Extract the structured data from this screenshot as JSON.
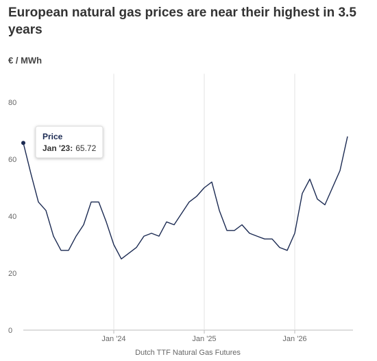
{
  "chart_data": {
    "type": "line",
    "title": "European natural gas prices are near their highest in 3.5 years",
    "y_label": "€ / MWh",
    "source": "Dutch TTF Natural Gas Futures",
    "x": [
      "2023-01",
      "2023-02",
      "2023-03",
      "2023-04",
      "2023-05",
      "2023-06",
      "2023-07",
      "2023-08",
      "2023-09",
      "2023-10",
      "2023-11",
      "2023-12",
      "2024-01",
      "2024-02",
      "2024-03",
      "2024-04",
      "2024-05",
      "2024-06",
      "2024-07",
      "2024-08",
      "2024-09",
      "2024-10",
      "2024-11",
      "2024-12",
      "2025-01",
      "2025-02",
      "2025-03",
      "2025-04",
      "2025-05",
      "2025-06",
      "2025-07",
      "2025-08",
      "2025-09",
      "2025-10",
      "2025-11",
      "2025-12",
      "2026-01",
      "2026-02",
      "2026-03",
      "2026-04",
      "2026-05",
      "2026-06",
      "2026-07",
      "2026-08"
    ],
    "series": [
      {
        "name": "Price",
        "color": "#1b2a52",
        "values": [
          65.72,
          55,
          45,
          42,
          33,
          28,
          28,
          33,
          37,
          45,
          45,
          38,
          30,
          25,
          27,
          29,
          33,
          34,
          33,
          38,
          37,
          41,
          45,
          47,
          50,
          52,
          42,
          35,
          35,
          37,
          34,
          33,
          32,
          32,
          29,
          28,
          34,
          48,
          53,
          46,
          44,
          50,
          56,
          68
        ]
      }
    ],
    "xlim": [
      "2023-01",
      "2026-08"
    ],
    "xticks": [
      {
        "value": "2024-01",
        "label": "Jan '24"
      },
      {
        "value": "2025-01",
        "label": "Jan '25"
      },
      {
        "value": "2026-01",
        "label": "Jan '26"
      }
    ],
    "ylim": [
      0,
      90
    ],
    "yticks": [
      0,
      20,
      40,
      60,
      80
    ],
    "grid": "x",
    "tooltip": {
      "label": "Jan '23:"
    }
  }
}
